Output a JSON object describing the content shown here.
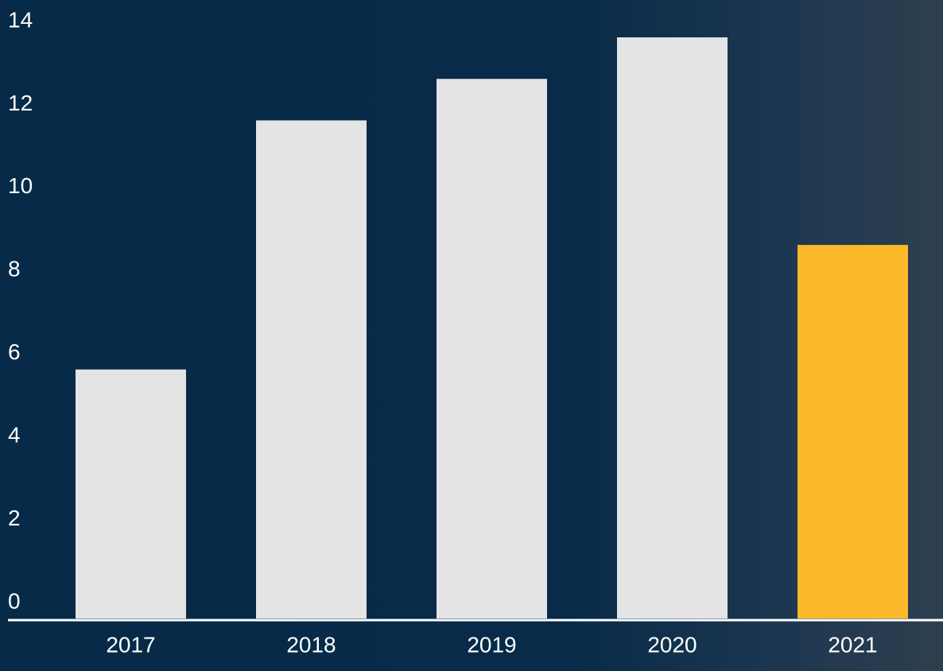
{
  "chart_data": {
    "type": "bar",
    "categories": [
      "2017",
      "2018",
      "2019",
      "2020",
      "2021"
    ],
    "values": [
      6,
      12,
      13,
      14,
      9
    ],
    "colors": [
      "#e4e4e4",
      "#e4e4e4",
      "#e4e4e4",
      "#e4e4e4",
      "#fbb829"
    ],
    "ylim": [
      0,
      14
    ],
    "yticks": [
      0,
      2,
      4,
      6,
      8,
      10,
      12,
      14
    ],
    "grid": false
  }
}
